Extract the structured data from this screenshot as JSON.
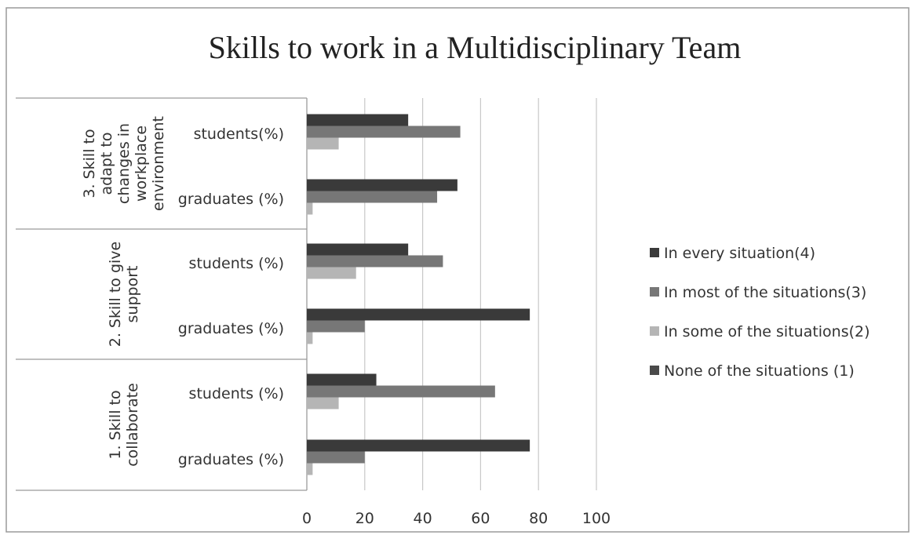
{
  "chart_data": {
    "type": "bar",
    "orientation": "horizontal",
    "title": "Skills to work in a Multidisciplinary Team",
    "xlim": [
      0,
      100
    ],
    "xticks": [
      "0",
      "20",
      "40",
      "60",
      "80",
      "100"
    ],
    "grid": true,
    "legend_position": "right",
    "groups": [
      {
        "label_lines": [
          "3. Skill to",
          "adapt to",
          "changes in",
          "workplace",
          "environment"
        ],
        "categories": [
          "students(%)",
          "graduates (%)"
        ]
      },
      {
        "label_lines": [
          "2. Skill to give",
          "support"
        ],
        "categories": [
          "students (%)",
          "graduates (%)"
        ]
      },
      {
        "label_lines": [
          "1. Skill to",
          "collaborate"
        ],
        "categories": [
          "students (%)",
          "graduates (%)"
        ]
      }
    ],
    "series": [
      {
        "name": "In every situation(4)",
        "color": "#3a3a3a",
        "values": [
          [
            35,
            52
          ],
          [
            35,
            77
          ],
          [
            24,
            77
          ]
        ]
      },
      {
        "name": "In most of the situations(3)",
        "color": "#777777",
        "values": [
          [
            53,
            45
          ],
          [
            47,
            20
          ],
          [
            65,
            20
          ]
        ]
      },
      {
        "name": "In some of the situations(2)",
        "color": "#b5b5b5",
        "values": [
          [
            11,
            2
          ],
          [
            17,
            2
          ],
          [
            11,
            2
          ]
        ]
      },
      {
        "name": "None of the situations (1)",
        "color": "#4a4a4a",
        "values": [
          [
            0,
            0
          ],
          [
            0,
            0
          ],
          [
            0,
            0
          ]
        ]
      }
    ]
  }
}
